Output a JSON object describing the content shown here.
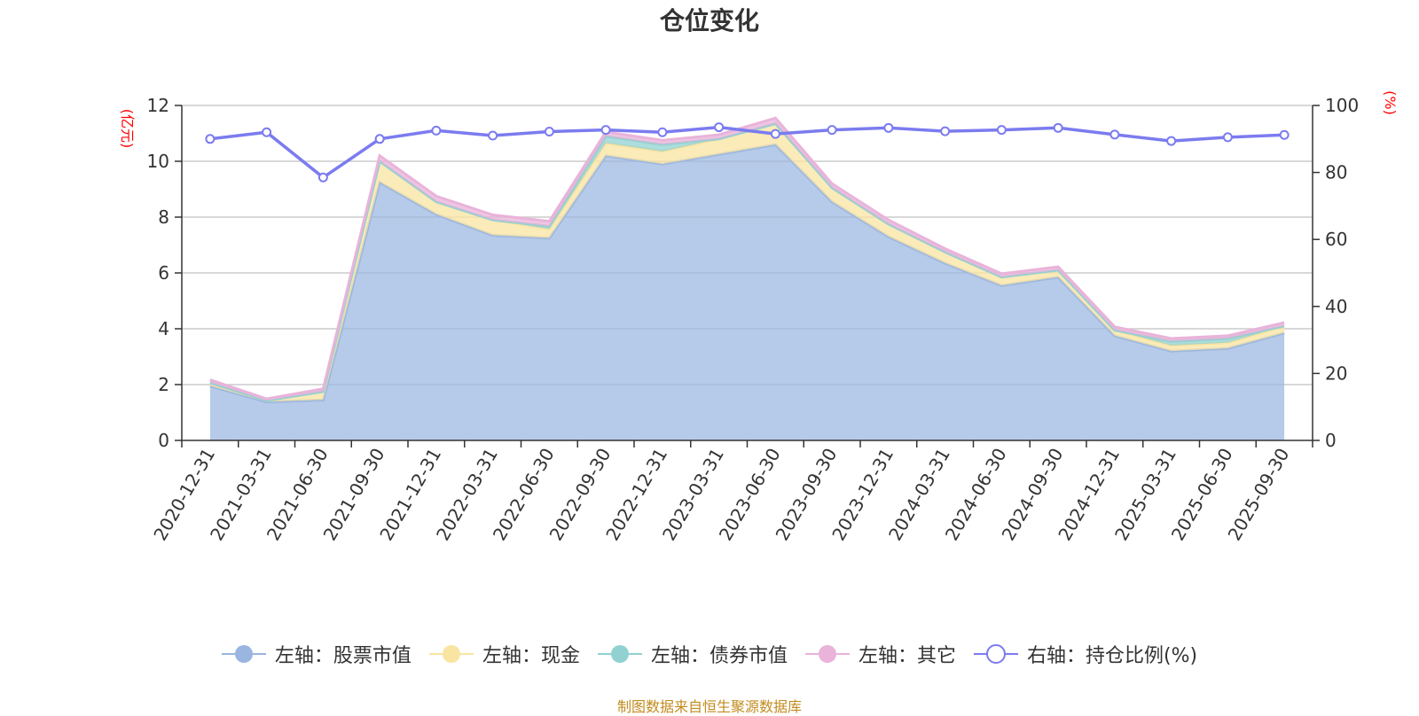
{
  "title": "仓位变化",
  "footer": "制图数据来自恒生聚源数据库",
  "chart_data": {
    "type": "area",
    "title": "仓位变化",
    "categories": [
      "2020-12-31",
      "2021-03-31",
      "2021-06-30",
      "2021-09-30",
      "2021-12-31",
      "2022-03-31",
      "2022-06-30",
      "2022-09-30",
      "2022-12-31",
      "2023-03-31",
      "2023-06-30",
      "2023-09-30",
      "2023-12-31",
      "2024-03-31",
      "2024-06-30",
      "2024-09-30",
      "2024-12-31",
      "2025-03-31",
      "2025-06-30",
      "2025-09-30"
    ],
    "left_axis": {
      "unit": "(亿元)",
      "ylim": [
        0,
        12
      ],
      "ticks": [
        "0",
        "2",
        "4",
        "6",
        "8",
        "10",
        "12"
      ]
    },
    "right_axis": {
      "unit": "(%)",
      "ylim": [
        0,
        100
      ],
      "ticks": [
        "0",
        "20",
        "40",
        "60",
        "80",
        "100"
      ]
    },
    "stack_series": [
      {
        "name": "左轴：股票市值",
        "color": "#9ab6e0",
        "values": [
          1.95,
          1.38,
          1.45,
          9.25,
          8.1,
          7.35,
          7.25,
          10.2,
          9.9,
          10.25,
          10.6,
          8.55,
          7.3,
          6.35,
          5.55,
          5.85,
          3.75,
          3.2,
          3.3,
          3.85
        ]
      },
      {
        "name": "左轴：现金",
        "color": "#f9e4a2",
        "values": [
          0.12,
          0.05,
          0.3,
          0.75,
          0.45,
          0.55,
          0.32,
          0.45,
          0.45,
          0.55,
          0.75,
          0.5,
          0.45,
          0.4,
          0.3,
          0.25,
          0.2,
          0.2,
          0.2,
          0.25
        ]
      },
      {
        "name": "左轴：债券市值",
        "color": "#92d1d1",
        "values": [
          0,
          0,
          0,
          0,
          0,
          0,
          0.1,
          0.25,
          0.25,
          0,
          0,
          0,
          0,
          0,
          0,
          0,
          0,
          0.15,
          0.15,
          0
        ]
      },
      {
        "name": "左轴：其它",
        "color": "#e9b3da",
        "values": [
          0.1,
          0.06,
          0.1,
          0.2,
          0.2,
          0.18,
          0.18,
          0.15,
          0.15,
          0.15,
          0.2,
          0.15,
          0.15,
          0.12,
          0.12,
          0.12,
          0.12,
          0.1,
          0.1,
          0.12
        ]
      }
    ],
    "line_series": {
      "name": "右轴：持仓比例(%)",
      "color": "#7b7bf0",
      "values": [
        90,
        92,
        78.5,
        90,
        92.5,
        91,
        92.2,
        92.7,
        92,
        93.5,
        91.5,
        92.7,
        93.3,
        92.3,
        92.7,
        93.3,
        91.3,
        89.4,
        90.5,
        91.2
      ]
    },
    "grid": true,
    "legend_position": "bottom"
  }
}
